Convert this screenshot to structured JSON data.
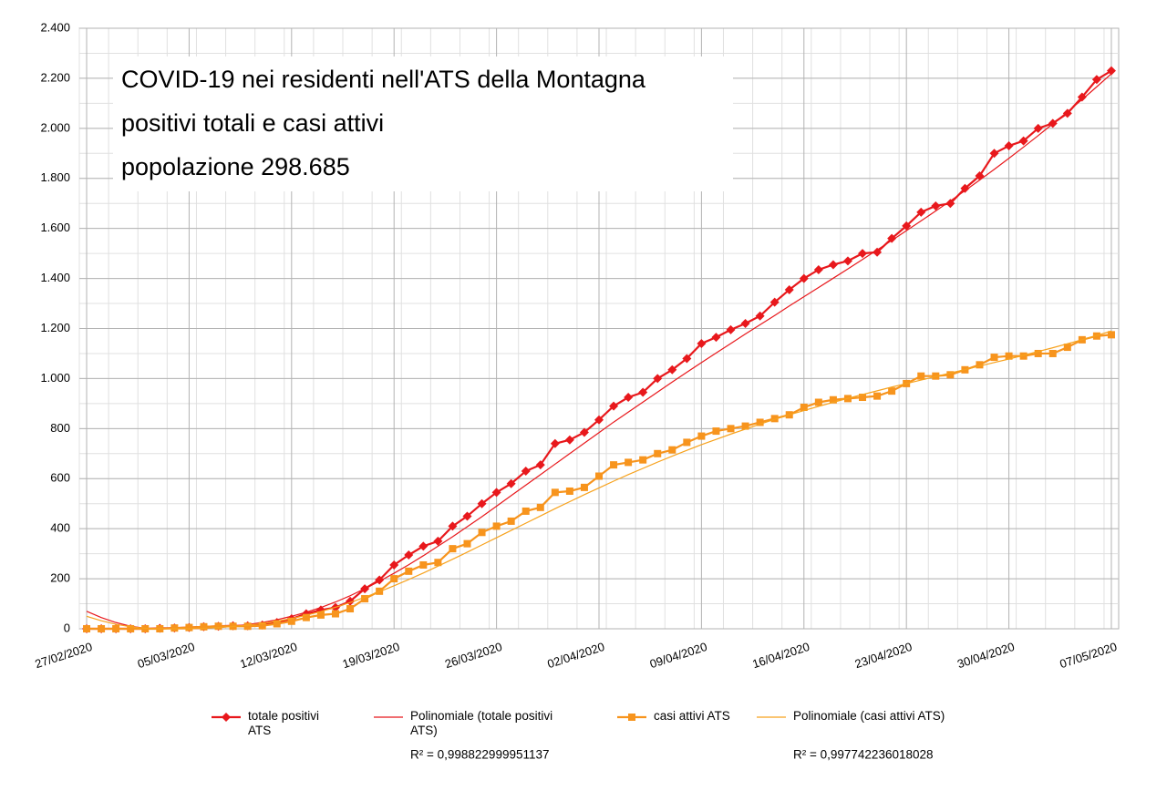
{
  "chart_data": {
    "type": "line",
    "title_lines": [
      "COVID-19 nei residenti nell'ATS della Montagna",
      "positivi totali e casi attivi",
      "popolazione 298.685"
    ],
    "categories": [
      "27/02/2020",
      null,
      null,
      null,
      null,
      null,
      null,
      "05/03/2020",
      null,
      null,
      null,
      null,
      null,
      null,
      "12/03/2020",
      null,
      null,
      null,
      null,
      null,
      null,
      "19/03/2020",
      null,
      null,
      null,
      null,
      null,
      null,
      "26/03/2020",
      null,
      null,
      null,
      null,
      null,
      null,
      "02/04/2020",
      null,
      null,
      null,
      null,
      null,
      null,
      "09/04/2020",
      null,
      null,
      null,
      null,
      null,
      null,
      "16/04/2020",
      null,
      null,
      null,
      null,
      null,
      null,
      "23/04/2020",
      null,
      null,
      null,
      null,
      null,
      null,
      "30/04/2020",
      null,
      null,
      null,
      null,
      null,
      null,
      "07/05/2020"
    ],
    "ylim": [
      0,
      2400
    ],
    "yticks": [
      0,
      200,
      400,
      600,
      800,
      {
        "value": 1000,
        "label": "1.000"
      },
      {
        "value": 1200,
        "label": "1.200"
      },
      {
        "value": 1400,
        "label": "1.400"
      },
      {
        "value": 1600,
        "label": "1.600"
      },
      {
        "value": 1800,
        "label": "1.800"
      },
      {
        "value": 2000,
        "label": "2.000"
      },
      {
        "value": 2200,
        "label": "2.200"
      },
      {
        "value": 2400,
        "label": "2.400"
      }
    ],
    "grid": true,
    "series": [
      {
        "name": "totale positivi ATS",
        "color": "#e8181c",
        "marker": "diamond",
        "values": [
          0,
          0,
          0,
          0,
          0,
          2,
          3,
          5,
          8,
          10,
          12,
          12,
          15,
          25,
          40,
          60,
          75,
          85,
          110,
          160,
          195,
          255,
          295,
          330,
          350,
          410,
          450,
          500,
          545,
          580,
          630,
          655,
          740,
          755,
          785,
          835,
          890,
          925,
          945,
          1000,
          1035,
          1080,
          1140,
          1165,
          1195,
          1220,
          1250,
          1305,
          1355,
          1400,
          1435,
          1455,
          1470,
          1500,
          1505,
          1560,
          1610,
          1665,
          1690,
          1700,
          1760,
          1810,
          1900,
          1930,
          1950,
          2000,
          2020,
          2060,
          2125,
          2195,
          2230
        ]
      },
      {
        "name": "Polinomiale (totale positivi ATS)",
        "color": "#e8181c",
        "marker": "none",
        "r2": "R² = 0,998822999951137",
        "values": [
          70,
          45,
          25,
          10,
          2,
          0,
          0,
          0,
          2,
          5,
          10,
          17,
          25,
          36,
          50,
          66,
          85,
          107,
          132,
          160,
          190,
          222,
          256,
          292,
          330,
          368,
          408,
          448,
          490,
          532,
          574,
          616,
          658,
          700,
          742,
          784,
          826,
          866,
          906,
          946,
          986,
          1025,
          1064,
          1102,
          1140,
          1178,
          1215,
          1252,
          1290,
          1327,
          1364,
          1401,
          1438,
          1476,
          1514,
          1552,
          1591,
          1630,
          1670,
          1710,
          1751,
          1793,
          1836,
          1880,
          1925,
          1971,
          2018,
          2066,
          2115,
          2166,
          2218
        ]
      },
      {
        "name": "casi attivi ATS",
        "color": "#f7941d",
        "marker": "square",
        "values": [
          0,
          0,
          0,
          0,
          0,
          0,
          3,
          5,
          8,
          10,
          10,
          10,
          12,
          20,
          30,
          45,
          55,
          60,
          80,
          120,
          150,
          200,
          230,
          255,
          265,
          320,
          340,
          385,
          410,
          430,
          470,
          485,
          545,
          550,
          565,
          610,
          655,
          665,
          675,
          700,
          715,
          745,
          770,
          790,
          800,
          810,
          825,
          840,
          855,
          885,
          905,
          915,
          920,
          925,
          930,
          950,
          980,
          1010,
          1010,
          1015,
          1035,
          1055,
          1085,
          1090,
          1090,
          1100,
          1100,
          1125,
          1155,
          1170,
          1175
        ]
      },
      {
        "name": "Polinomiale (casi attivi ATS)",
        "color": "#f7a21d",
        "marker": "none",
        "r2": "R² = 0,997742236018028",
        "values": [
          50,
          32,
          18,
          8,
          2,
          0,
          0,
          0,
          2,
          5,
          9,
          14,
          21,
          30,
          41,
          54,
          69,
          86,
          105,
          126,
          148,
          172,
          197,
          223,
          250,
          278,
          306,
          335,
          364,
          393,
          422,
          451,
          480,
          508,
          536,
          563,
          590,
          616,
          641,
          666,
          690,
          713,
          736,
          757,
          778,
          798,
          818,
          837,
          855,
          872,
          889,
          905,
          921,
          936,
          951,
          966,
          980,
          994,
          1008,
          1022,
          1036,
          1050,
          1064,
          1078,
          1093,
          1108,
          1123,
          1139,
          1155,
          1172,
          1190
        ]
      }
    ]
  }
}
